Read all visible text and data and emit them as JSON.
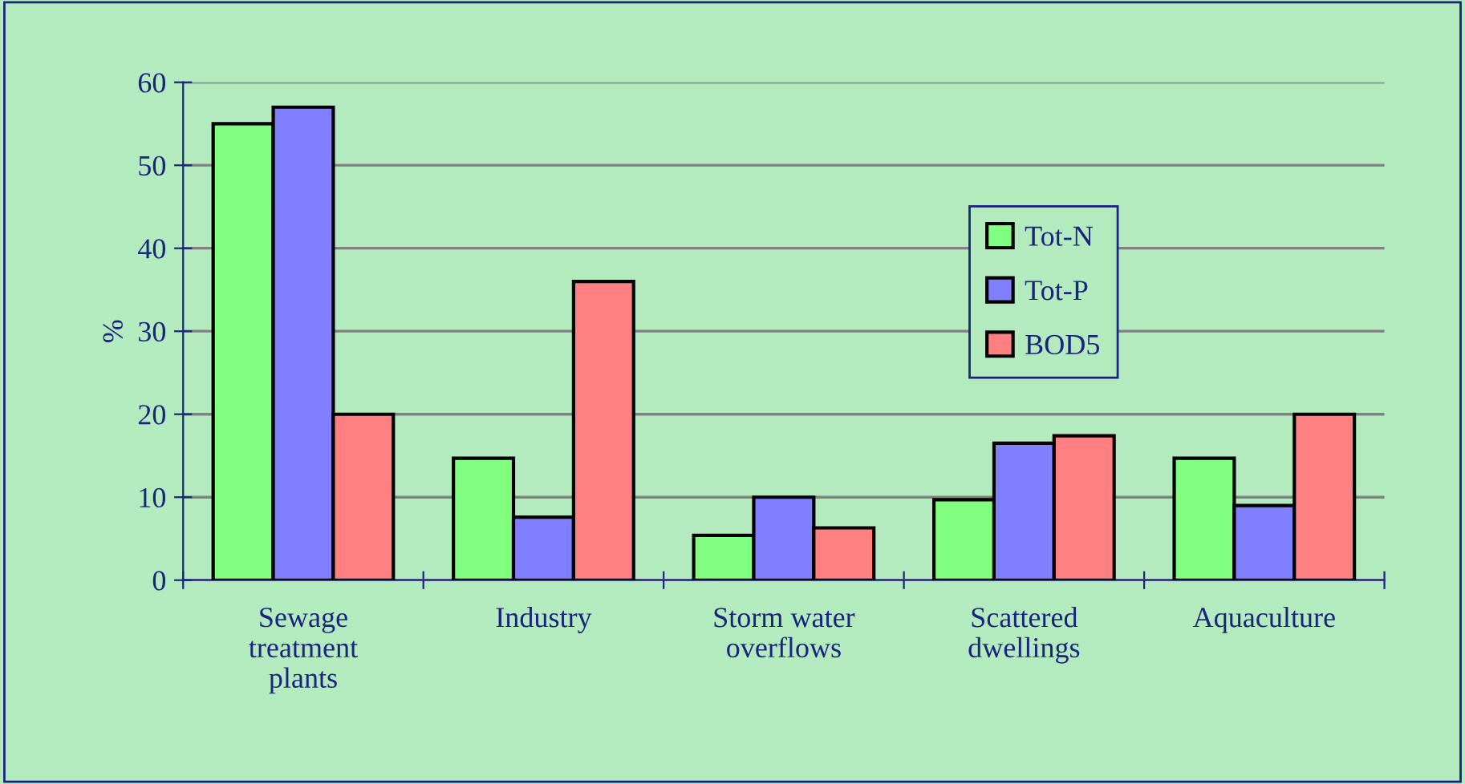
{
  "chart_data": {
    "type": "bar",
    "ylabel": "%",
    "categories": [
      "Sewage\ntreatment\nplants",
      "Industry",
      "Storm water\noverflows",
      "Scattered\ndwellings",
      "Aquaculture"
    ],
    "series": [
      {
        "name": "Tot-N",
        "color": "#80ff80",
        "values": [
          55,
          14.7,
          5.4,
          9.7,
          14.7
        ]
      },
      {
        "name": "Tot-P",
        "color": "#8080ff",
        "values": [
          57,
          7.6,
          10,
          16.5,
          9
        ]
      },
      {
        "name": "BOD5",
        "color": "#ff8080",
        "values": [
          20,
          36,
          6.3,
          17.4,
          20
        ]
      }
    ],
    "ylim": [
      0,
      60
    ],
    "yticks": [
      0,
      10,
      20,
      30,
      40,
      50,
      60
    ],
    "grid": "y",
    "legend": "top right"
  }
}
